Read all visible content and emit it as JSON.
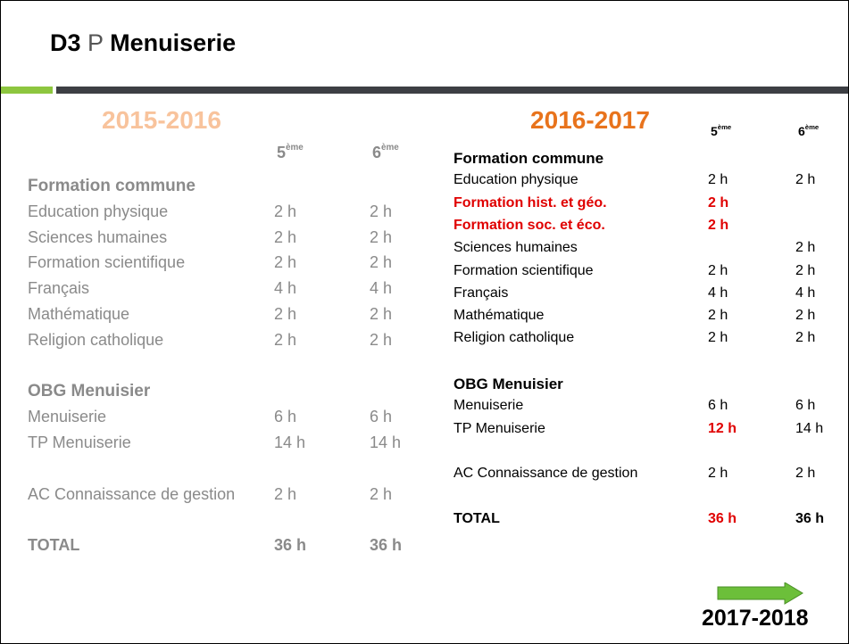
{
  "header": {
    "code": "D3",
    "letter": "P",
    "name": "Menuiserie"
  },
  "left": {
    "year": "2015-2016",
    "col5": {
      "num": "5",
      "sup": "ème"
    },
    "col6": {
      "num": "6",
      "sup": "ème"
    },
    "groups": [
      {
        "heading": "Formation commune",
        "rows": [
          {
            "label": "Education physique",
            "c5": "2 h",
            "c6": "2 h"
          },
          {
            "label": "Sciences humaines",
            "c5": "2 h",
            "c6": "2 h"
          },
          {
            "label": "Formation scientifique",
            "c5": "2 h",
            "c6": "2 h"
          },
          {
            "label": "Français",
            "c5": "4 h",
            "c6": "4 h"
          },
          {
            "label": "Mathématique",
            "c5": "2 h",
            "c6": "2 h"
          },
          {
            "label": "Religion catholique",
            "c5": "2 h",
            "c6": "2 h"
          }
        ]
      },
      {
        "heading": "OBG Menuisier",
        "rows": [
          {
            "label": "Menuiserie",
            "c5": "6 h",
            "c6": "6 h"
          },
          {
            "label": "TP Menuiserie",
            "c5": "14 h",
            "c6": "14 h"
          }
        ]
      },
      {
        "rows": [
          {
            "label": "AC Connaissance de gestion",
            "c5": "2 h",
            "c6": "2 h"
          }
        ]
      },
      {
        "rows": [
          {
            "label": "TOTAL",
            "c5": "36 h",
            "c6": "36 h",
            "bold": true
          }
        ]
      }
    ]
  },
  "right": {
    "year": "2016-2017",
    "col5": {
      "num": "5",
      "sup": "ème"
    },
    "col6": {
      "num": "6",
      "sup": "ème"
    },
    "groups": [
      {
        "heading": "Formation commune",
        "rows": [
          {
            "label": "Education physique",
            "c5": "2 h",
            "c6": "2 h"
          },
          {
            "label": "Formation hist. et géo.",
            "c5": "2 h",
            "c6": null,
            "red_label": true,
            "red_c5": true
          },
          {
            "label": "Formation soc. et éco.",
            "c5": "2 h",
            "c6": null,
            "red_label": true,
            "red_c5": true
          },
          {
            "label": "Sciences humaines",
            "c5": null,
            "c6": "2 h"
          },
          {
            "label": "Formation scientifique",
            "c5": "2 h",
            "c6": "2 h"
          },
          {
            "label": "Français",
            "c5": "4 h",
            "c6": "4 h"
          },
          {
            "label": "Mathématique",
            "c5": "2 h",
            "c6": "2 h"
          },
          {
            "label": "Religion catholique",
            "c5": "2 h",
            "c6": "2 h"
          }
        ]
      },
      {
        "heading": "OBG Menuisier",
        "rows": [
          {
            "label": "Menuiserie",
            "c5": "6 h",
            "c6": "6 h"
          },
          {
            "label": "TP Menuiserie",
            "c5": "12 h",
            "c6": "14 h",
            "red_c5": true
          }
        ]
      },
      {
        "rows": [
          {
            "label": "AC Connaissance de gestion",
            "c5": "2 h",
            "c6": "2 h"
          }
        ]
      },
      {
        "rows": [
          {
            "label": "TOTAL",
            "c5": "36 h",
            "c6": "36 h",
            "bold": true,
            "red_c5": true
          }
        ]
      }
    ]
  },
  "next_year": "2017-2018"
}
